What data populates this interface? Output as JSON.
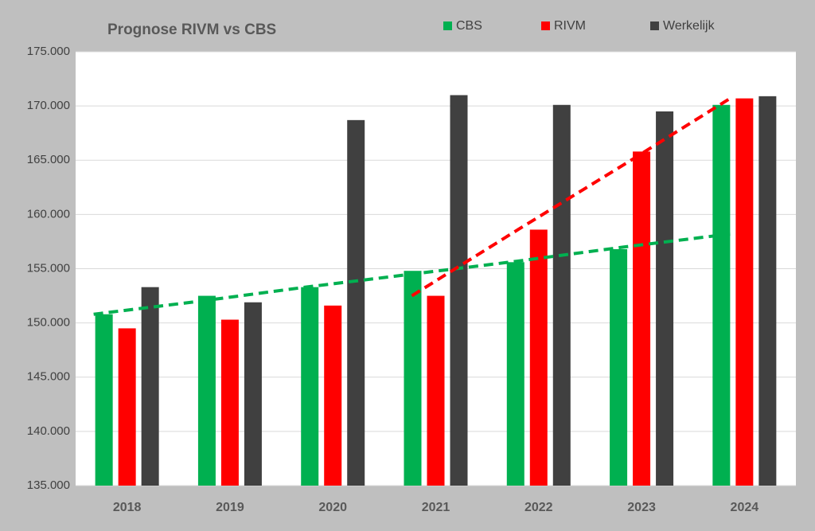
{
  "chart_data": {
    "type": "bar",
    "title": "Prognose RIVM vs CBS",
    "categories": [
      "2018",
      "2019",
      "2020",
      "2021",
      "2022",
      "2023",
      "2024"
    ],
    "series": [
      {
        "name": "CBS",
        "color": "#00b050",
        "values": [
          150800,
          152500,
          153300,
          154800,
          155600,
          156800,
          170100
        ]
      },
      {
        "name": "RIVM",
        "color": "#ff0000",
        "values": [
          149500,
          150300,
          151600,
          152500,
          158600,
          165800,
          170700
        ]
      },
      {
        "name": "Werkelijk",
        "color": "#404040",
        "values": [
          153300,
          151900,
          168700,
          171000,
          170100,
          169500,
          170900
        ]
      }
    ],
    "trendlines": [
      {
        "color": "#00b050",
        "values": [
          150800,
          152000,
          153300,
          154500,
          155700,
          157000,
          158200
        ]
      },
      {
        "color": "#ff0000",
        "values": [
          null,
          null,
          null,
          152500,
          158600,
          164600,
          170700
        ]
      }
    ],
    "ylim": [
      135000,
      175000
    ],
    "yticks": [
      {
        "value": 135000,
        "label": "135.000"
      },
      {
        "value": 140000,
        "label": "140.000"
      },
      {
        "value": 145000,
        "label": "145.000"
      },
      {
        "value": 150000,
        "label": "150.000"
      },
      {
        "value": 155000,
        "label": "155.000"
      },
      {
        "value": 160000,
        "label": "160.000"
      },
      {
        "value": 165000,
        "label": "165.000"
      },
      {
        "value": 170000,
        "label": "170.000"
      },
      {
        "value": 175000,
        "label": "175.000"
      }
    ],
    "grid": true,
    "legend": "top"
  }
}
